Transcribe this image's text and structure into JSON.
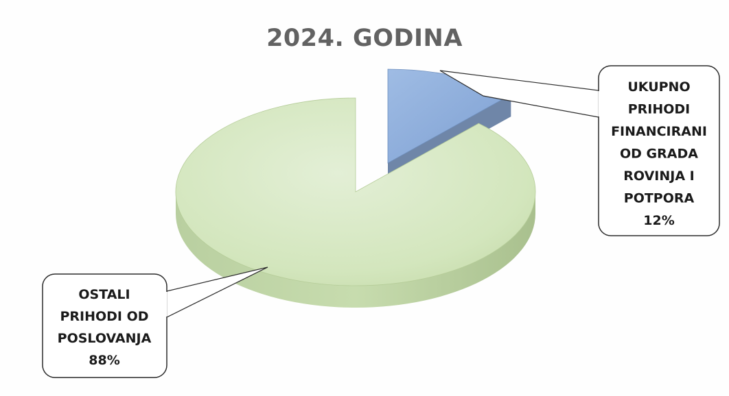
{
  "chart_data": {
    "type": "pie",
    "title": "2024. GODINA",
    "slices": [
      {
        "label_lines": [
          "UKUPNO",
          "PRIHODI",
          "FINANCIRANI",
          "OD GRADA",
          "ROVINJA I",
          "POTPORA"
        ],
        "value": 12,
        "value_label": "12%",
        "color": "#8aaede"
      },
      {
        "label_lines": [
          "OSTALI",
          "PRIHODI OD",
          "POSLOVANJA"
        ],
        "value": 88,
        "value_label": "88%",
        "color": "#d6e8c2"
      }
    ],
    "style": "3d-exploded"
  }
}
